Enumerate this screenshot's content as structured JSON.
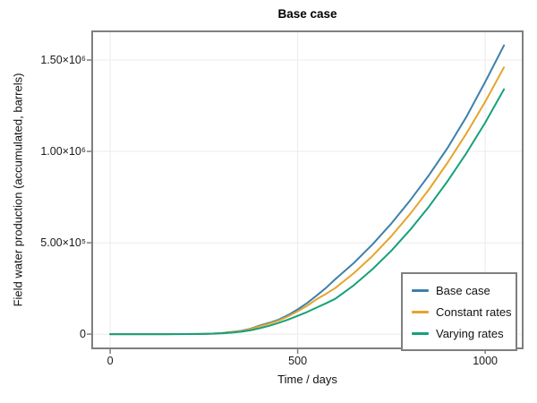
{
  "figure": {
    "background": "#ffffff",
    "frame_color": "#7f7f7f",
    "grid_color": "#ebebeb",
    "tick_color": "#7f7f7f"
  },
  "chart_data": {
    "type": "line",
    "title": "Base case",
    "xlabel": "Time / days",
    "ylabel": "Field water production (accumulated, barrels)",
    "grid": true,
    "legend_position": "bottom-right",
    "x_range_days": [
      -48,
      1100
    ],
    "y_range_barrels": [
      -78000,
      1657000
    ],
    "x_ticks": [
      {
        "value": 0,
        "label": "0"
      },
      {
        "value": 500,
        "label": "500"
      },
      {
        "value": 1000,
        "label": "1000"
      }
    ],
    "y_ticks": [
      {
        "value": 0,
        "label": "0"
      },
      {
        "value": 500000,
        "label": "5.00×10⁵"
      },
      {
        "value": 1000000,
        "label": "1.00×10⁶"
      },
      {
        "value": 1500000,
        "label": "1.50×10⁶"
      }
    ],
    "x_days": [
      0,
      50,
      100,
      150,
      200,
      225,
      250,
      275,
      300,
      325,
      350,
      375,
      400,
      425,
      450,
      475,
      500,
      525,
      550,
      575,
      600,
      650,
      700,
      750,
      800,
      850,
      900,
      950,
      1000,
      1050
    ],
    "series": [
      {
        "name": "Base case",
        "color": "#3d80ad",
        "values": [
          0,
          0,
          0,
          0,
          500,
          900,
          1500,
          3500,
          7000,
          12000,
          18000,
          30000,
          48000,
          62000,
          80000,
          105000,
          135000,
          170000,
          210000,
          252000,
          300000,
          390000,
          492000,
          606000,
          732000,
          870000,
          1020000,
          1190000,
          1380000,
          1580000
        ]
      },
      {
        "name": "Constant rates",
        "color": "#e6a42c",
        "values": [
          0,
          0,
          0,
          0,
          400,
          800,
          1300,
          3000,
          6000,
          10500,
          16000,
          28000,
          44000,
          58000,
          75000,
          98000,
          125000,
          155000,
          190000,
          220000,
          252000,
          334000,
          429000,
          537000,
          658000,
          792000,
          939000,
          1099000,
          1272000,
          1460000
        ]
      },
      {
        "name": "Varying rates",
        "color": "#16a07c",
        "values": [
          0,
          0,
          0,
          0,
          300,
          600,
          1000,
          2500,
          5000,
          8500,
          13000,
          21000,
          33000,
          46000,
          62000,
          80000,
          100000,
          121000,
          145000,
          168000,
          193000,
          268000,
          356000,
          457000,
          571000,
          698000,
          838000,
          991000,
          1157000,
          1340000
        ]
      }
    ]
  }
}
